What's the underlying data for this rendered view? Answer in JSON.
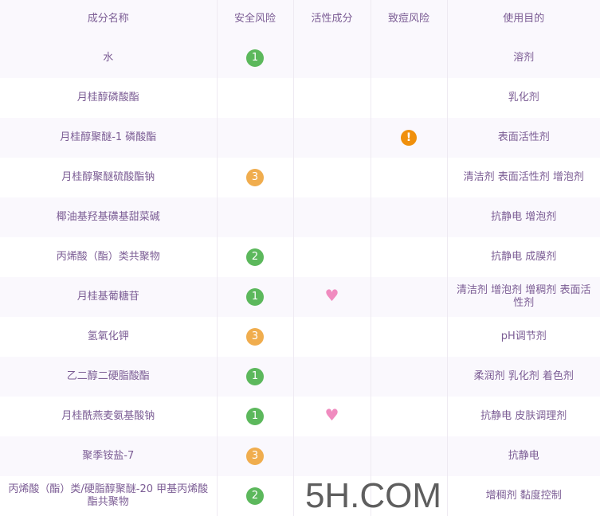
{
  "headers": [
    "成分名称",
    "安全风险",
    "活性成分",
    "致痘风险",
    "使用目的"
  ],
  "colors": {
    "green": "#5cb85c",
    "orange": "#f0ad4e",
    "warning": "#f0900c",
    "heart": "#f08bbf",
    "text": "#7b5c94"
  },
  "rows": [
    {
      "name": "水",
      "risk": "1",
      "risk_color": "green",
      "active": false,
      "acne": false,
      "purpose": "溶剂"
    },
    {
      "name": "月桂醇磷酸酯",
      "risk": "",
      "active": false,
      "acne": false,
      "purpose": "乳化剂"
    },
    {
      "name": "月桂醇聚醚-1 磷酸酯",
      "risk": "",
      "active": false,
      "acne": true,
      "purpose": "表面活性剂"
    },
    {
      "name": "月桂醇聚醚硫酸酯钠",
      "risk": "3",
      "risk_color": "orange",
      "active": false,
      "acne": false,
      "purpose": "清洁剂 表面活性剂 增泡剂"
    },
    {
      "name": "椰油基羟基磺基甜菜碱",
      "risk": "",
      "active": false,
      "acne": false,
      "purpose": "抗静电 增泡剂"
    },
    {
      "name": "丙烯酸（酯）类共聚物",
      "risk": "2",
      "risk_color": "green",
      "active": false,
      "acne": false,
      "purpose": "抗静电 成膜剂"
    },
    {
      "name": "月桂基葡糖苷",
      "risk": "1",
      "risk_color": "green",
      "active": true,
      "acne": false,
      "purpose": "清洁剂 增泡剂 增稠剂 表面活性剂"
    },
    {
      "name": "氢氧化钾",
      "risk": "3",
      "risk_color": "orange",
      "active": false,
      "acne": false,
      "purpose": "pH调节剂"
    },
    {
      "name": "乙二醇二硬脂酸酯",
      "risk": "1",
      "risk_color": "green",
      "active": false,
      "acne": false,
      "purpose": "柔润剂 乳化剂 着色剂"
    },
    {
      "name": "月桂酰燕麦氨基酸钠",
      "risk": "1",
      "risk_color": "green",
      "active": true,
      "acne": false,
      "purpose": "抗静电 皮肤调理剂"
    },
    {
      "name": "聚季铵盐-7",
      "risk": "3",
      "risk_color": "orange",
      "active": false,
      "acne": false,
      "purpose": "抗静电"
    },
    {
      "name": "丙烯酸（酯）类/硬脂醇聚醚-20 甲基丙烯酸酯共聚物",
      "risk": "2",
      "risk_color": "green",
      "active": false,
      "acne": false,
      "purpose": "增稠剂 黏度控制"
    }
  ],
  "watermark": "5H.COM"
}
